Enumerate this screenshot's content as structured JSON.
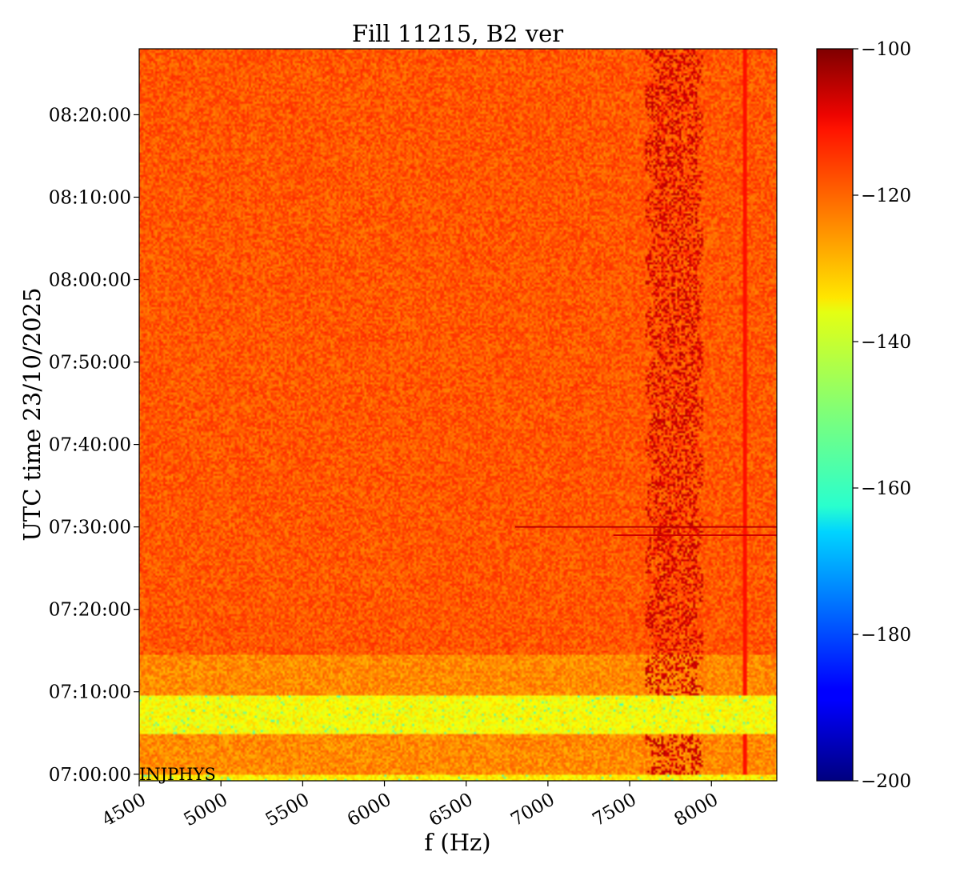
{
  "chart_data": {
    "type": "heatmap",
    "title": "Fill 11215, B2 ver",
    "xlabel": "f (Hz)",
    "ylabel": "UTC time 23/10/2025",
    "xlim": [
      4500,
      8400
    ],
    "ylim_minutes": [
      -0.8,
      88
    ],
    "x_ticks": [
      4500,
      5000,
      5500,
      6000,
      6500,
      7000,
      7500,
      8000
    ],
    "y_ticks": [
      {
        "label": "07:00:00",
        "minutes": 0
      },
      {
        "label": "07:10:00",
        "minutes": 10
      },
      {
        "label": "07:20:00",
        "minutes": 20
      },
      {
        "label": "07:30:00",
        "minutes": 30
      },
      {
        "label": "07:40:00",
        "minutes": 40
      },
      {
        "label": "07:50:00",
        "minutes": 50
      },
      {
        "label": "08:00:00",
        "minutes": 60
      },
      {
        "label": "08:10:00",
        "minutes": 70
      },
      {
        "label": "08:20:00",
        "minutes": 80
      }
    ],
    "colorbar": {
      "min": -200,
      "max": -100,
      "ticks": [
        "−100",
        "−120",
        "−140",
        "−160",
        "−180",
        "−200"
      ],
      "tick_values": [
        -100,
        -120,
        -140,
        -160,
        -180,
        -200
      ],
      "colormap": "jet"
    },
    "annotation": "INJPHYS",
    "regions": [
      {
        "t_start": -0.8,
        "t_end": 0.0,
        "level_dB": -136,
        "note": "bottom yellow strip"
      },
      {
        "t_start": 0.0,
        "t_end": 4.8,
        "level_dB": -126
      },
      {
        "t_start": 4.8,
        "t_end": 9.6,
        "level_dB": -138
      },
      {
        "t_start": 9.6,
        "t_end": 14.6,
        "level_dB": -126
      },
      {
        "t_start": 14.6,
        "t_end": 88,
        "level_dB": -121
      }
    ],
    "features": [
      {
        "kind": "band",
        "f_start": 7600,
        "f_end": 7950,
        "t_start": 0,
        "t_end": 88,
        "level_dB": -105
      },
      {
        "kind": "hline",
        "t": 30.0,
        "f_start": 6800,
        "f_end": 8400,
        "level_dB": -106
      },
      {
        "kind": "hline",
        "t": 29.0,
        "f_start": 7400,
        "f_end": 8400,
        "level_dB": -108
      },
      {
        "kind": "vline",
        "f": 8200,
        "t_start": 0,
        "t_end": 88,
        "level_dB": -114
      }
    ]
  }
}
